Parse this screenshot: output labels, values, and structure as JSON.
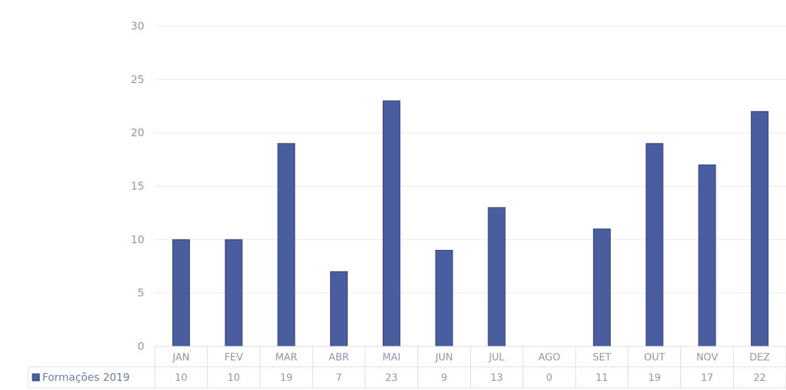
{
  "chart_data": {
    "type": "bar",
    "categories": [
      "JAN",
      "FEV",
      "MAR",
      "ABR",
      "MAI",
      "JUN",
      "JUL",
      "AGO",
      "SET",
      "OUT",
      "NOV",
      "DEZ"
    ],
    "series": [
      {
        "name": "Formações 2019",
        "values": [
          10,
          10,
          19,
          7,
          23,
          9,
          13,
          0,
          11,
          19,
          17,
          22
        ],
        "color": "#4a5d9f"
      }
    ],
    "ylim": [
      0,
      30
    ],
    "yticks": [
      0,
      5,
      10,
      15,
      20,
      25,
      30
    ],
    "grid": true,
    "legend": "data-table-left"
  }
}
